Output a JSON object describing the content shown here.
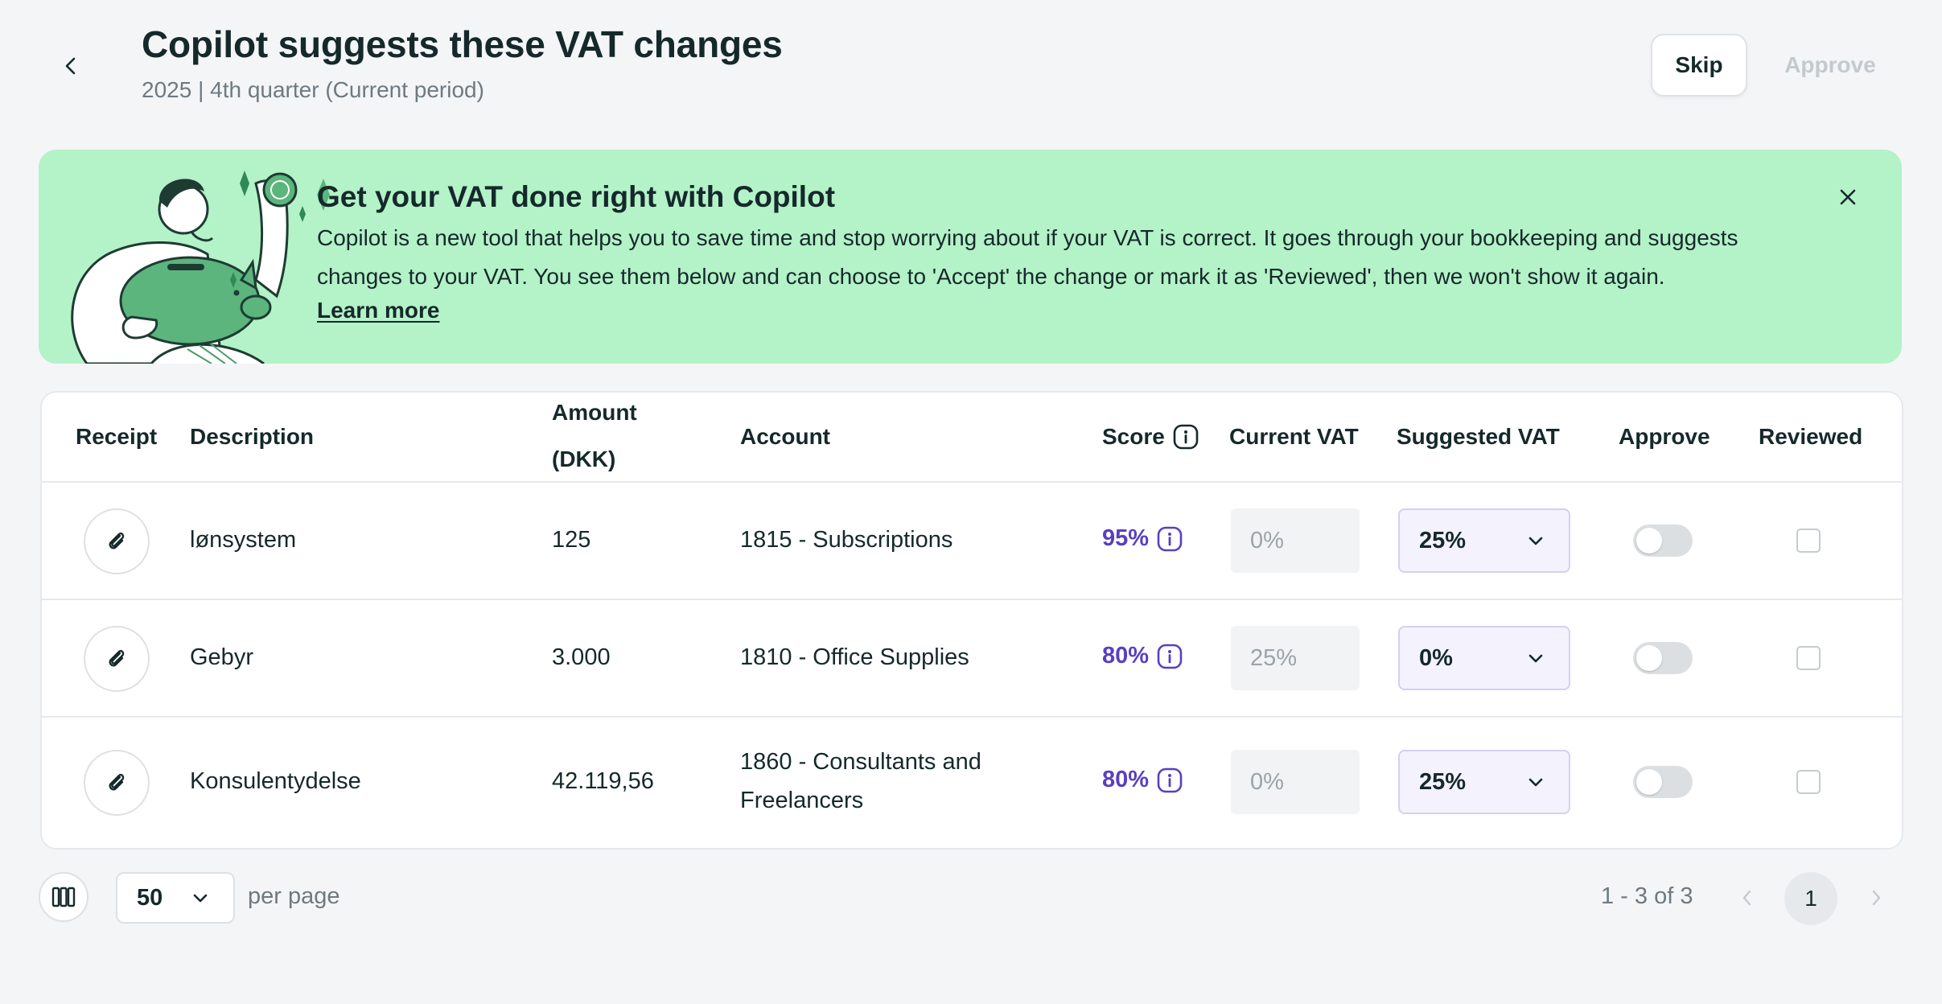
{
  "header": {
    "title": "Copilot suggests these VAT changes",
    "subtitle": "2025 | 4th quarter (Current period)",
    "skip_label": "Skip",
    "approve_label": "Approve"
  },
  "banner": {
    "title": "Get your VAT done right with Copilot",
    "text": "Copilot is a new tool that helps you to save time and stop worrying about if your VAT is correct. It goes through your bookkeeping and suggests changes to your VAT. You see them below and can choose to 'Accept' the change or mark it as 'Reviewed', then we won't show it again.",
    "link": "Learn more",
    "background_color": "#b4f2c8"
  },
  "table": {
    "columns": {
      "receipt": "Receipt",
      "description": "Description",
      "amount_line1": "Amount",
      "amount_line2": "(DKK)",
      "account": "Account",
      "score": "Score",
      "current_vat": "Current VAT",
      "suggested_vat": "Suggested VAT",
      "approve": "Approve",
      "reviewed": "Reviewed"
    },
    "rows": [
      {
        "description": "lønsystem",
        "amount": "125",
        "account_line1": "1815 - Subscriptions",
        "account_line2": "",
        "score": "95%",
        "current_vat": "0%",
        "suggested_vat": "25%",
        "approved": false,
        "reviewed": false
      },
      {
        "description": "Gebyr",
        "amount": "3.000",
        "account_line1": "1810 - Office Supplies",
        "account_line2": "",
        "score": "80%",
        "current_vat": "25%",
        "suggested_vat": "0%",
        "approved": false,
        "reviewed": false
      },
      {
        "description": "Konsulentydelse",
        "amount": "42.119,56",
        "account_line1": "1860 - Consultants and",
        "account_line2": "Freelancers",
        "score": "80%",
        "current_vat": "0%",
        "suggested_vat": "25%",
        "approved": false,
        "reviewed": false
      }
    ]
  },
  "footer": {
    "per_page_value": "50",
    "per_page_label": "per page",
    "range": "1 - 3 of 3",
    "current_page": "1"
  },
  "colors": {
    "accent_purple": "#5a3fc0",
    "text_dark": "#15292b",
    "text_muted": "#6d7a80",
    "page_bg": "#f4f5f7"
  },
  "icons": {
    "back": "chevron-left-icon",
    "close": "close-icon",
    "receipt": "paperclip-icon",
    "score_info": "info-icon",
    "dropdown": "chevron-down-icon",
    "columns": "columns-icon",
    "prev": "chevron-left-icon",
    "next": "chevron-right-icon"
  }
}
